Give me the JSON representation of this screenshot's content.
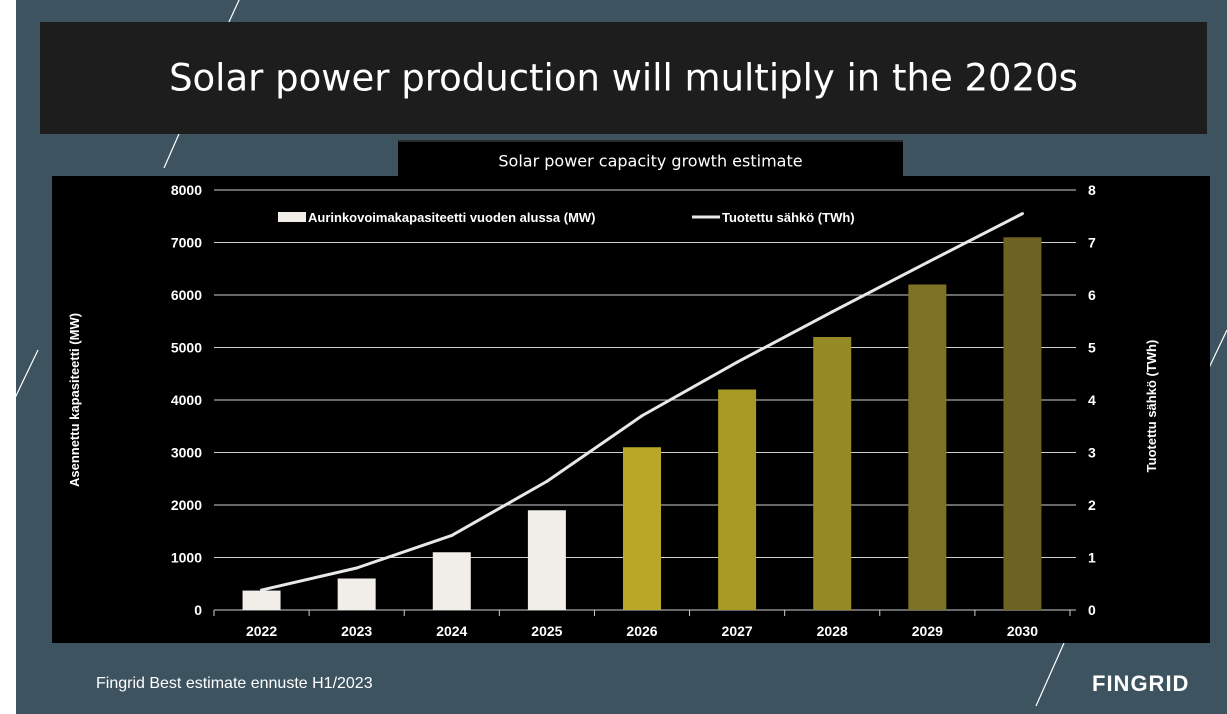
{
  "slide": {
    "title": "Solar power production will multiply in the 2020s",
    "subtitle": "Solar power capacity growth estimate",
    "footer": "Fingrid Best estimate ennuste H1/2023",
    "logo_text": "FINGRID",
    "colors": {
      "background": "#3d5460",
      "title_bar": "#1d1d1d",
      "chart_panel": "#000000"
    }
  },
  "chart_data": {
    "type": "bar",
    "categories": [
      "2022",
      "2023",
      "2024",
      "2025",
      "2026",
      "2027",
      "2028",
      "2029",
      "2030"
    ],
    "series": [
      {
        "name": "Aurinkovoimakapasiteetti vuoden alussa (MW)",
        "kind": "bar",
        "axis": "left",
        "values": [
          370,
          600,
          1100,
          1900,
          3100,
          4200,
          5200,
          6200,
          7100
        ],
        "colors": [
          "#f1eeea",
          "#f1eeea",
          "#f1eeea",
          "#f1eeea",
          "#b9a727",
          "#a69a25",
          "#958a26",
          "#7e7224",
          "#6d6124"
        ],
        "legend_color": "#f1eeea"
      },
      {
        "name": "Tuotettu sähkö (TWh)",
        "kind": "line",
        "axis": "right",
        "values": [
          0.38,
          0.8,
          1.42,
          2.45,
          3.7,
          4.72,
          5.68,
          6.62,
          7.55
        ],
        "color": "#e8e8e8"
      }
    ],
    "ylabel": "Asennettu kapasiteetti (MW)",
    "y2label": "Tuotettu sähkö (TWh)",
    "ylim": [
      0,
      8000
    ],
    "y2lim": [
      0,
      8
    ],
    "yticks": [
      "0",
      "1000",
      "2000",
      "3000",
      "4000",
      "5000",
      "6000",
      "7000",
      "8000"
    ],
    "y2ticks": [
      "0",
      "1",
      "2",
      "3",
      "4",
      "5",
      "6",
      "7",
      "8"
    ],
    "grid": true,
    "legend_position": "top"
  }
}
